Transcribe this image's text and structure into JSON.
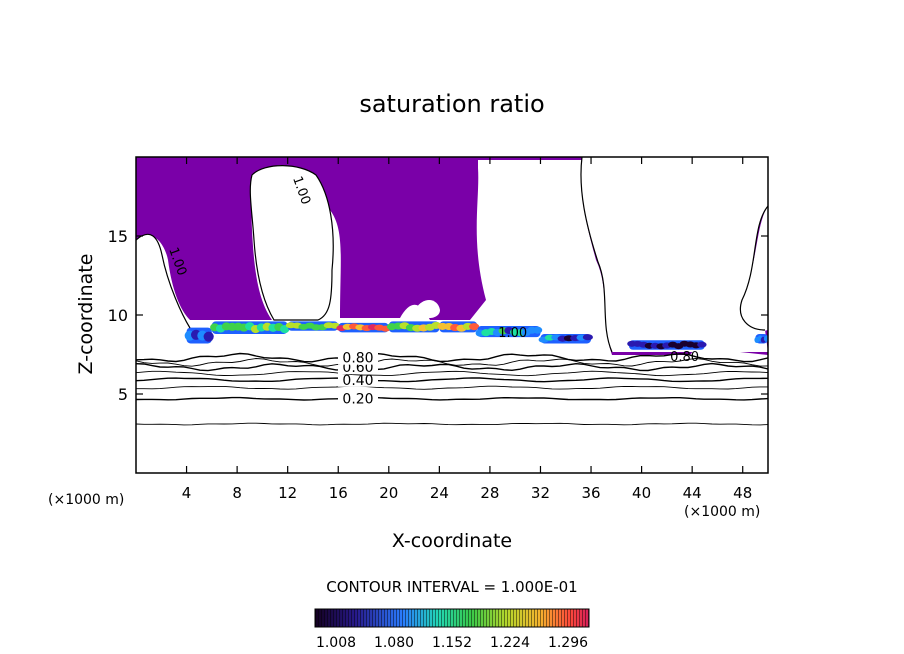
{
  "chart_data": {
    "type": "heatmap",
    "title": "saturation ratio",
    "xlabel": "X-coordinate",
    "ylabel": "Z-coordinate",
    "x_unit_left": "(×1000 m)",
    "x_unit_right": "(×1000 m)",
    "xlim": [
      0,
      50
    ],
    "ylim": [
      0,
      20
    ],
    "x_ticks": [
      4,
      8,
      12,
      16,
      20,
      24,
      28,
      32,
      36,
      40,
      44,
      48
    ],
    "y_ticks": [
      5,
      10,
      15
    ],
    "grid": false,
    "contour_interval_text": "CONTOUR INTERVAL = 1.000E-01",
    "contour_levels": [
      0.1,
      0.2,
      0.3,
      0.4,
      0.5,
      0.6,
      0.7,
      0.8,
      0.9,
      1.0
    ],
    "contour_lines": [
      {
        "level": 0.1,
        "z": 3.1,
        "labeled": false,
        "label": ""
      },
      {
        "level": 0.2,
        "z": 4.7,
        "labeled": true,
        "label": "0.20"
      },
      {
        "level": 0.3,
        "z": 5.4,
        "labeled": false,
        "label": ""
      },
      {
        "level": 0.4,
        "z": 5.9,
        "labeled": true,
        "label": "0.40"
      },
      {
        "level": 0.5,
        "z": 6.3,
        "labeled": false,
        "label": ""
      },
      {
        "level": 0.6,
        "z": 6.7,
        "labeled": true,
        "label": "0.60"
      },
      {
        "level": 0.7,
        "z": 7.0,
        "labeled": false,
        "label": ""
      },
      {
        "level": 0.8,
        "z": 7.3,
        "labeled": true,
        "label": "0.80"
      }
    ],
    "contour_annotations": [
      {
        "text": "1.00",
        "x": 12.8,
        "y": 17.8,
        "rotate": 70
      },
      {
        "text": "1.00",
        "x": 3.0,
        "y": 13.3,
        "rotate": 70
      },
      {
        "text": "1.00",
        "x": 29.8,
        "y": 8.6,
        "rotate": 0
      },
      {
        "text": "0.80",
        "x": 43.4,
        "y": 7.1,
        "rotate": 0
      }
    ],
    "fill_description": "Region with saturation ratio above 1.000 (violet) occupying upper domain above ~8 km, with supersaturated cloud layer near z≈8–10 km between x≈4 and 36 km",
    "colorbar": {
      "ticks": [
        "1.008",
        "1.080",
        "1.152",
        "1.224",
        "1.296"
      ],
      "colors": [
        "#1a0030",
        "#2a1ab0",
        "#1e8cff",
        "#1ee0a0",
        "#3fd24a",
        "#b8e02a",
        "#f5c030",
        "#ff5a3a",
        "#e02a60"
      ]
    },
    "cloud_band": [
      {
        "x0": 4.0,
        "x1": 6.0,
        "y0": 8.2,
        "y1": 9.2,
        "level": 0.3
      },
      {
        "x0": 6.0,
        "x1": 12.0,
        "y0": 8.8,
        "y1": 9.6,
        "level": 0.45
      },
      {
        "x0": 12.0,
        "x1": 16.0,
        "y0": 9.0,
        "y1": 9.6,
        "level": 0.6
      },
      {
        "x0": 16.0,
        "x1": 20.0,
        "y0": 8.9,
        "y1": 9.5,
        "level": 0.85
      },
      {
        "x0": 20.0,
        "x1": 24.0,
        "y0": 8.9,
        "y1": 9.6,
        "level": 0.55
      },
      {
        "x0": 24.0,
        "x1": 27.0,
        "y0": 8.9,
        "y1": 9.6,
        "level": 0.8
      },
      {
        "x0": 27.0,
        "x1": 32.0,
        "y0": 8.6,
        "y1": 9.3,
        "level": 0.35
      },
      {
        "x0": 32.0,
        "x1": 36.0,
        "y0": 8.2,
        "y1": 8.8,
        "level": 0.2
      },
      {
        "x0": 39.0,
        "x1": 45.0,
        "y0": 7.8,
        "y1": 8.4,
        "level": 0.1
      },
      {
        "x0": 49.0,
        "x1": 50.0,
        "y0": 8.2,
        "y1": 8.8,
        "level": 0.25
      }
    ]
  },
  "colors": {
    "violet": "#7a00a8",
    "axis": "#000000"
  }
}
